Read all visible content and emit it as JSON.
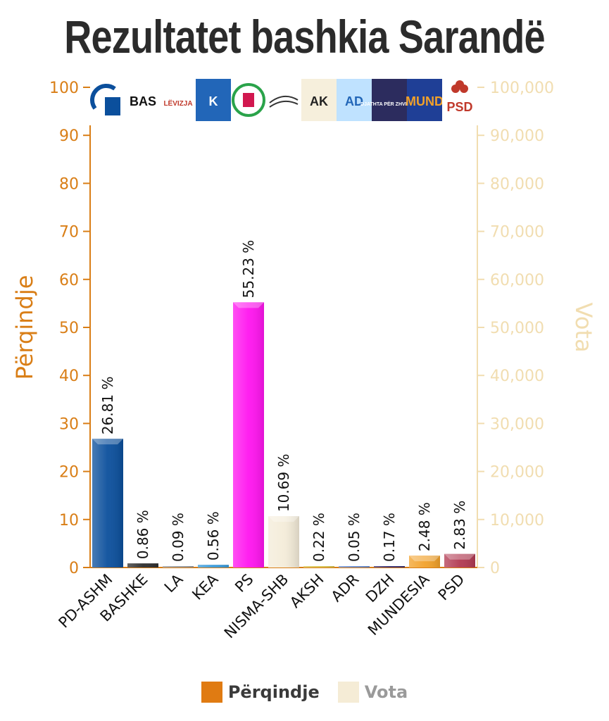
{
  "chart_data": {
    "type": "bar",
    "title": "Rezultatet bashkia Sarandë",
    "categories": [
      "PD-ASHM",
      "BASHKE",
      "LA",
      "KEA",
      "PS",
      "NISMA-SHB",
      "AKSH",
      "ADR",
      "DZH",
      "MUNDESIA",
      "PSD"
    ],
    "series": [
      {
        "name": "Përqindje",
        "values": [
          26.81,
          0.86,
          0.09,
          0.56,
          55.23,
          10.69,
          0.22,
          0.05,
          0.17,
          2.48,
          2.83
        ],
        "data_labels": [
          "26.81 %",
          "0.86 %",
          "0.09 %",
          "0.56 %",
          "55.23 %",
          "10.69 %",
          "0.22 %",
          "0.05 %",
          "0.17 %",
          "2.48 %",
          "2.83 %"
        ],
        "bar_colors": [
          "#0b4f9c",
          "#2e2e2e",
          "#9a9a9a",
          "#3a9ad9",
          "#ff14ef",
          "#f4ecd9",
          "#d8c24f",
          "#6a8ac9",
          "#3a2d6b",
          "#f2a12a",
          "#b23a52"
        ]
      }
    ],
    "ylabel": "Përqindje",
    "y2label": "Vota",
    "ylim": [
      0,
      100
    ],
    "y2lim": [
      0,
      100000
    ],
    "yticks": [
      "0",
      "10",
      "20",
      "30",
      "40",
      "50",
      "60",
      "70",
      "80",
      "90",
      "100"
    ],
    "y2ticks": [
      "0",
      "10,000",
      "20,000",
      "30,000",
      "40,000",
      "50,000",
      "60,000",
      "70,000",
      "80,000",
      "90,000",
      "100,000"
    ],
    "legend": [
      {
        "label": "Përqindje",
        "color": "#e07b12"
      },
      {
        "label": "Vota",
        "color": "#f5ecd6"
      }
    ],
    "legend_position": "bottom",
    "grid": false
  },
  "logos": [
    {
      "name": "pd-logo",
      "text": ""
    },
    {
      "name": "bashke-logo",
      "text": "BAS"
    },
    {
      "name": "la-logo",
      "text": "LËVIZJA"
    },
    {
      "name": "kea-logo",
      "text": "K"
    },
    {
      "name": "ps-logo",
      "text": ""
    },
    {
      "name": "nisma-logo",
      "text": ""
    },
    {
      "name": "aksh-logo",
      "text": "AK"
    },
    {
      "name": "adr-logo",
      "text": "AD"
    },
    {
      "name": "dzh-logo",
      "text": "DJATHTA PËR ZHVILLIM"
    },
    {
      "name": "mundesia-logo",
      "text": "MUND"
    },
    {
      "name": "psd-logo",
      "text": "PSD"
    }
  ],
  "colors": {
    "left_axis": "#d97e16",
    "right_axis": "#f1ddb0",
    "title": "#2b2b2b"
  }
}
